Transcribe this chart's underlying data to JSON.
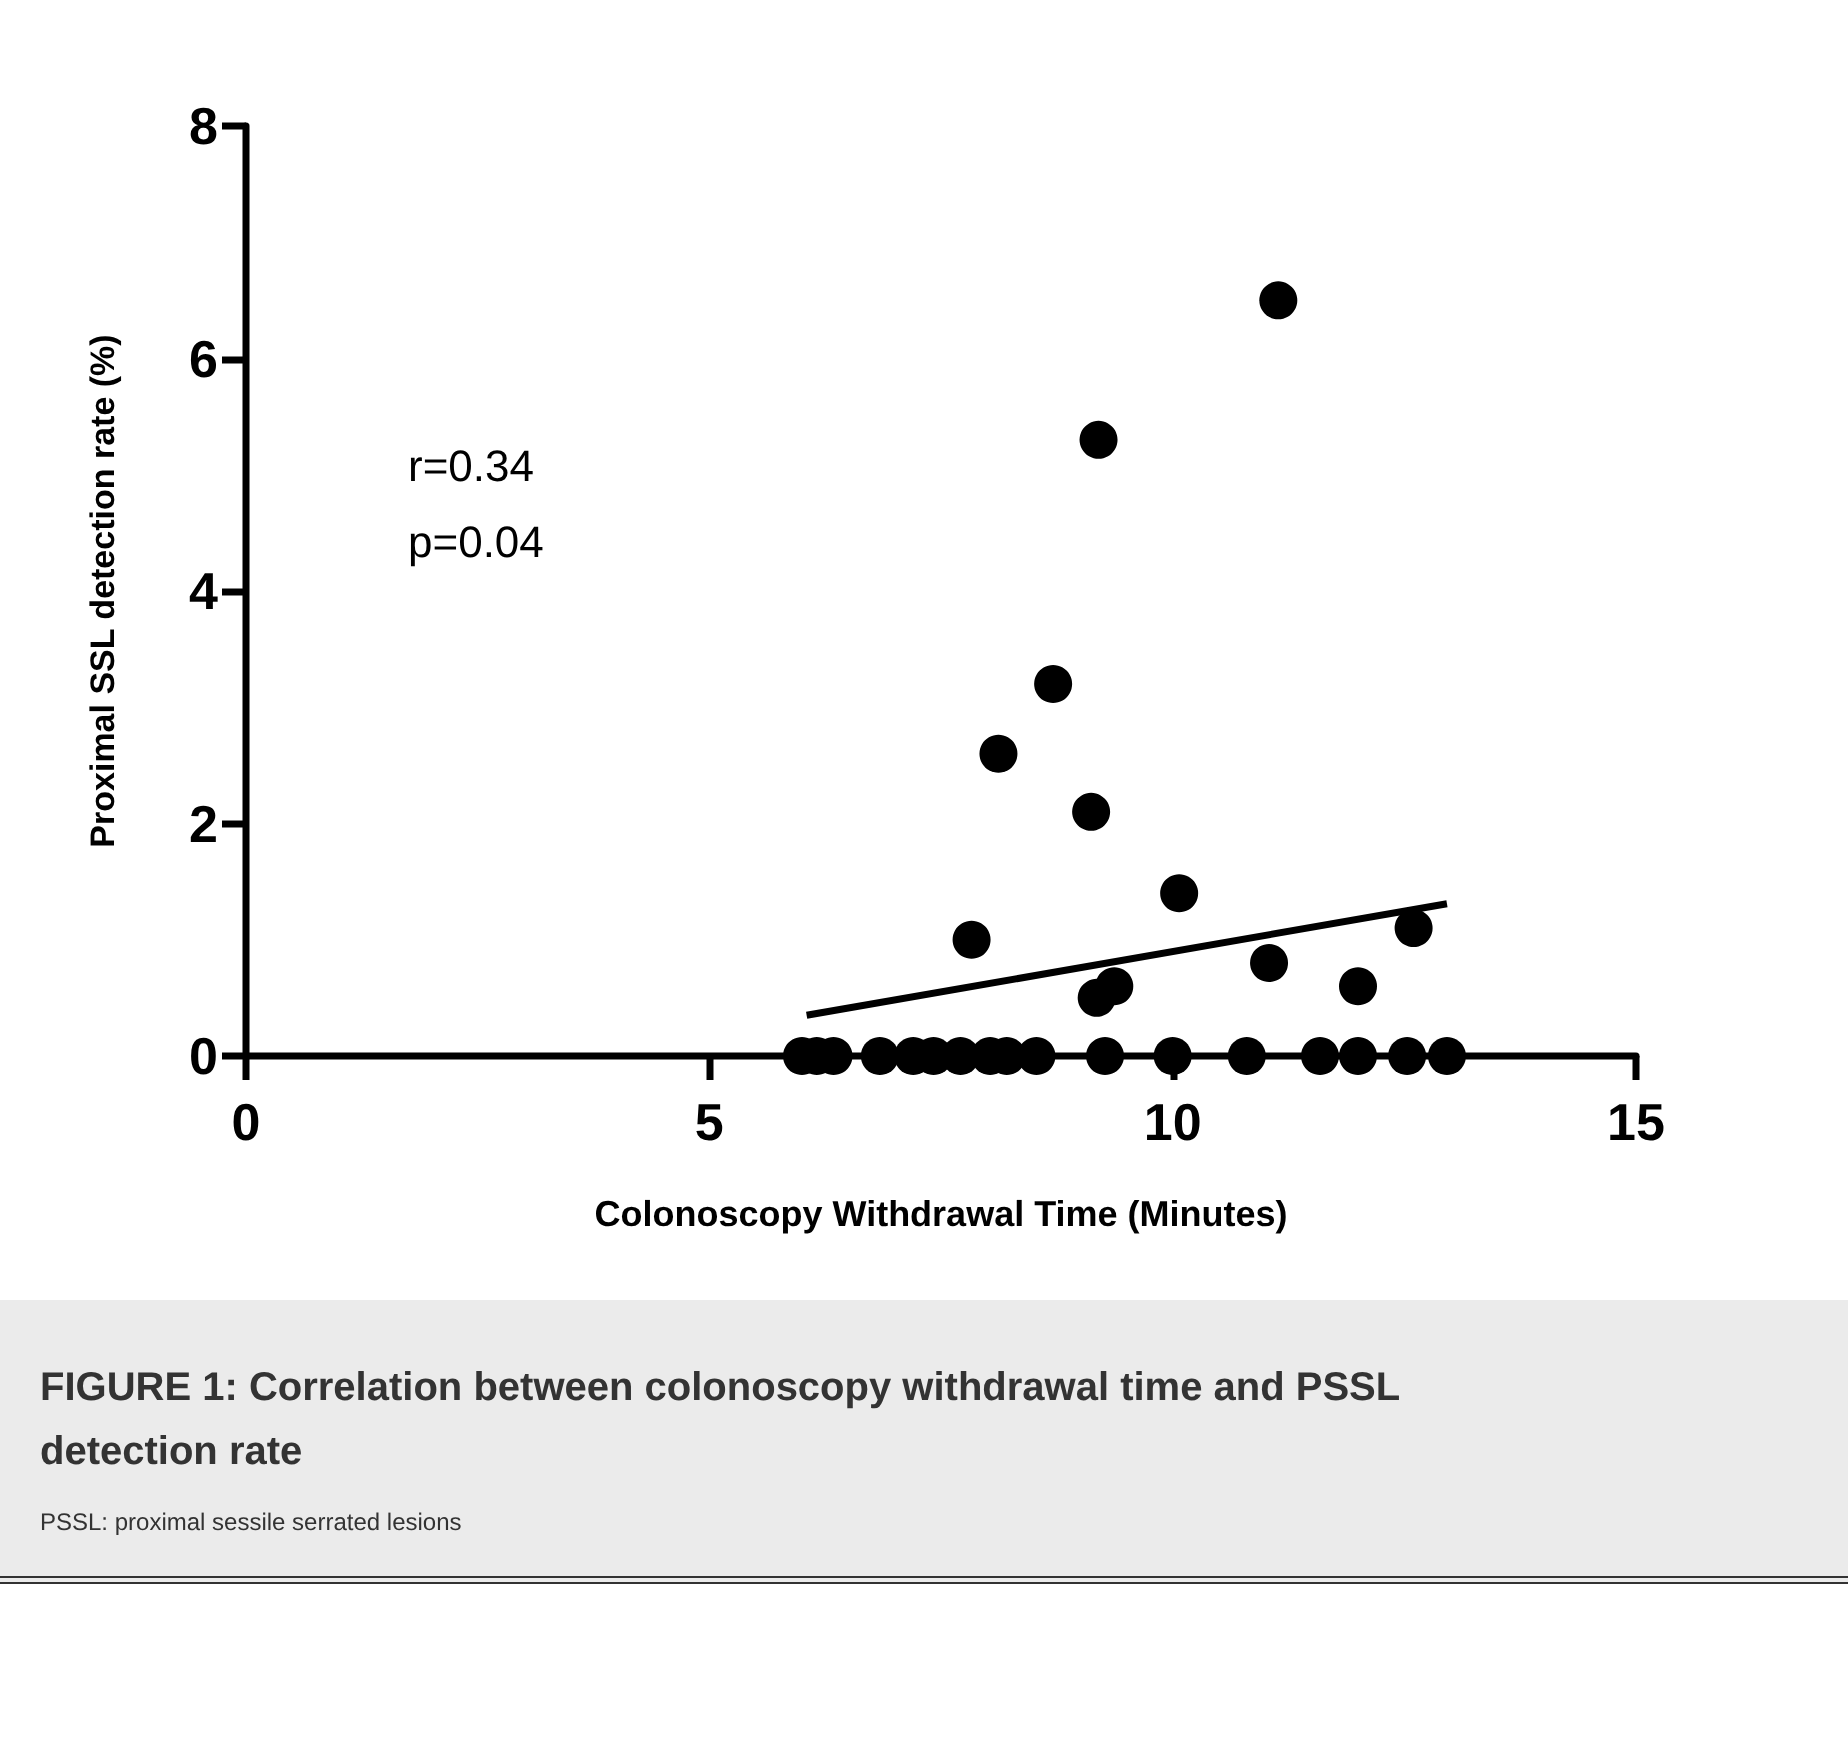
{
  "chart_data": {
    "type": "scatter",
    "title": "FIGURE 1: Correlation between colonoscopy withdrawal time and PSSL detection rate",
    "xlabel": "Colonoscopy Withdrawal Time (Minutes)",
    "ylabel": "Proximal SSL detection rate (%)",
    "annotations": [
      "r=0.34",
      "p=0.04",
      "PSSL: proximal sessile serrated lesions"
    ],
    "series": [
      {
        "type": "scatter",
        "color": "#000000",
        "marker": "circle",
        "x": [
          6.0,
          6.16,
          6.34,
          6.84,
          7.2,
          7.42,
          7.71,
          8.03,
          8.21,
          8.53,
          9.27,
          10.0,
          10.8,
          11.59,
          12.0,
          12.53,
          12.96,
          11.14,
          9.2,
          8.71,
          8.12,
          9.12,
          10.07,
          7.83,
          9.18,
          9.37,
          11.04,
          12.0,
          12.6
        ],
        "values": [
          0,
          0,
          0,
          0,
          0,
          0,
          0,
          0,
          0,
          0,
          0,
          0,
          0,
          0,
          0,
          0,
          0,
          6.5,
          5.3,
          3.2,
          2.6,
          2.1,
          1.4,
          1.0,
          0.5,
          0.6,
          0.8,
          0.6,
          1.1
        ]
      },
      {
        "type": "line",
        "color": "#000000",
        "marker": "none",
        "line_style": "solid",
        "x": [
          6.05,
          12.96
        ],
        "values": [
          0.35,
          1.31
        ]
      }
    ],
    "xlim": [
      0,
      15
    ],
    "xticks": [
      0,
      5,
      10,
      15
    ],
    "ylim": [
      0,
      8
    ],
    "yticks": [
      0,
      2,
      4,
      6,
      8
    ],
    "grid": false
  }
}
